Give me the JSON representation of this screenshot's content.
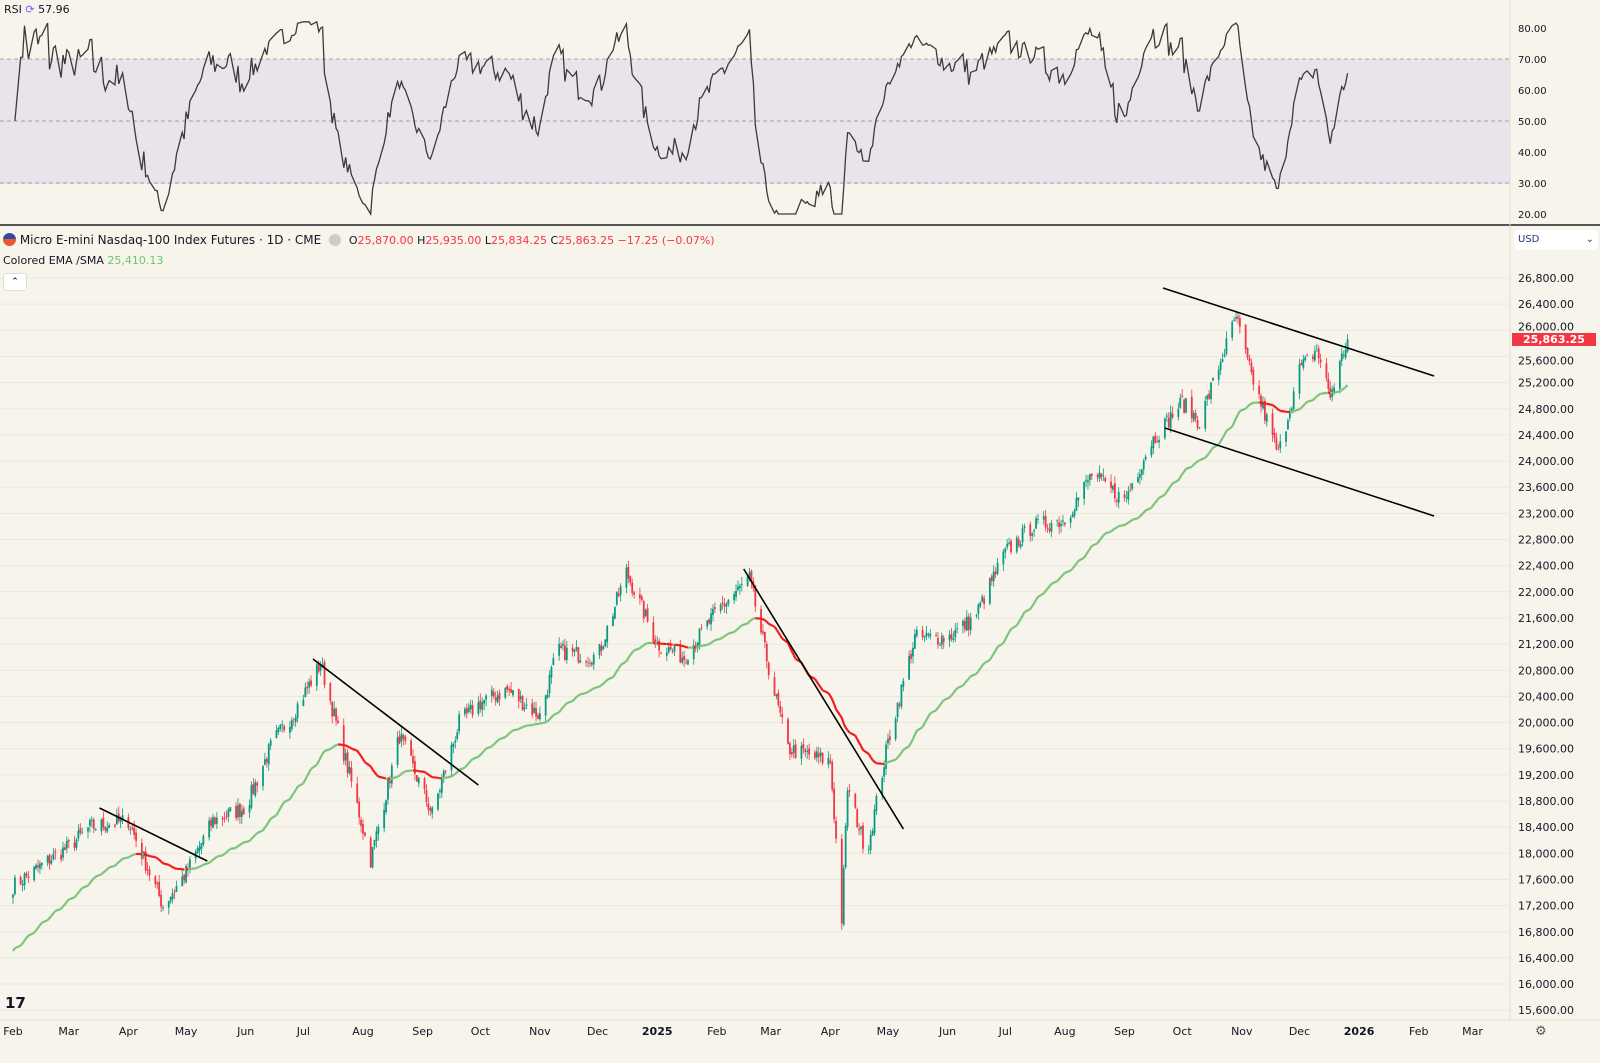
{
  "rsi_pane": {
    "label": "RSI",
    "value": "57.96",
    "ticks": [
      "80.00",
      "70.00",
      "60.00",
      "50.00",
      "40.00",
      "30.00",
      "20.00"
    ]
  },
  "header": {
    "symbol": "Micro E-mini Nasdaq-100 Index Futures · 1D · CME",
    "open_label": "O",
    "open": "25,870.00",
    "high_label": "H",
    "high": "25,935.00",
    "low_label": "L",
    "low": "25,834.25",
    "close_label": "C",
    "close": "25,863.25",
    "change": "−17.25 (−0.07%)",
    "indicator_name": "Colored EMA /SMA",
    "indicator_value": "25,410.13",
    "currency": "USD"
  },
  "colors": {
    "up": "#089981",
    "down": "#f23645",
    "ema_up": "#7cc47c",
    "ema_down": "#f21b1b",
    "rsi_line": "#3a3a3a",
    "rsi_band": "#e9e4ec",
    "background": "#f7f4ec"
  },
  "chart_data": {
    "type": "candlestick",
    "price_ticks": [
      "26,800.00",
      "26,400.00",
      "26,000.00",
      "25,600.00",
      "25,200.00",
      "24,800.00",
      "24,400.00",
      "24,000.00",
      "23,600.00",
      "23,200.00",
      "22,800.00",
      "22,400.00",
      "22,000.00",
      "21,600.00",
      "21,200.00",
      "20,800.00",
      "20,400.00",
      "20,000.00",
      "19,600.00",
      "19,200.00",
      "18,800.00",
      "18,400.00",
      "18,000.00",
      "17,600.00",
      "17,200.00",
      "16,800.00",
      "16,400.00",
      "16,000.00",
      "15,600.00"
    ],
    "ylim": [
      15500,
      27200
    ],
    "last_price": "25,863.25",
    "time_ticks": [
      "Feb",
      "Mar",
      "Apr",
      "May",
      "Jun",
      "Jul",
      "Aug",
      "Sep",
      "Oct",
      "Nov",
      "Dec",
      "2025",
      "Feb",
      "Mar",
      "Apr",
      "May",
      "Jun",
      "Jul",
      "Aug",
      "Sep",
      "Oct",
      "Nov",
      "Dec",
      "2026",
      "Feb",
      "Mar"
    ],
    "approx_closes": [
      [
        "2024-02-01",
        17500
      ],
      [
        "2024-02-20",
        17900
      ],
      [
        "2024-03-01",
        18100
      ],
      [
        "2024-03-12",
        18400
      ],
      [
        "2024-04-01",
        18500
      ],
      [
        "2024-04-19",
        17200
      ],
      [
        "2024-05-01",
        17700
      ],
      [
        "2024-05-15",
        18500
      ],
      [
        "2024-06-01",
        18700
      ],
      [
        "2024-06-15",
        19700
      ],
      [
        "2024-06-25",
        20100
      ],
      [
        "2024-07-10",
        20900
      ],
      [
        "2024-07-25",
        19200
      ],
      [
        "2024-08-05",
        17900
      ],
      [
        "2024-08-20",
        19800
      ],
      [
        "2024-09-06",
        18600
      ],
      [
        "2024-09-20",
        20000
      ],
      [
        "2024-10-01",
        20300
      ],
      [
        "2024-10-15",
        20500
      ],
      [
        "2024-11-01",
        20100
      ],
      [
        "2024-11-10",
        21100
      ],
      [
        "2024-12-01",
        21000
      ],
      [
        "2024-12-16",
        22300
      ],
      [
        "2025-01-01",
        21200
      ],
      [
        "2025-01-15",
        21000
      ],
      [
        "2025-02-01",
        21700
      ],
      [
        "2025-02-18",
        22200
      ],
      [
        "2025-03-01",
        20700
      ],
      [
        "2025-03-10",
        19600
      ],
      [
        "2025-04-01",
        19400
      ],
      [
        "2025-04-07",
        17000
      ],
      [
        "2025-04-10",
        19000
      ],
      [
        "2025-04-20",
        18000
      ],
      [
        "2025-05-01",
        19700
      ],
      [
        "2025-05-15",
        21300
      ],
      [
        "2025-06-01",
        21300
      ],
      [
        "2025-06-15",
        21600
      ],
      [
        "2025-07-01",
        22600
      ],
      [
        "2025-07-15",
        23000
      ],
      [
        "2025-08-01",
        23100
      ],
      [
        "2025-08-15",
        23800
      ],
      [
        "2025-09-01",
        23400
      ],
      [
        "2025-09-15",
        24300
      ],
      [
        "2025-10-01",
        24900
      ],
      [
        "2025-10-10",
        24600
      ],
      [
        "2025-10-29",
        26200
      ],
      [
        "2025-11-05",
        25400
      ],
      [
        "2025-11-20",
        24100
      ],
      [
        "2025-12-01",
        25400
      ],
      [
        "2025-12-10",
        25700
      ],
      [
        "2025-12-17",
        25000
      ],
      [
        "2025-12-26",
        25863.25
      ]
    ],
    "trendlines": [
      [
        [
          "2024-03-17",
          18693
        ],
        [
          "2024-05-12",
          17882
        ]
      ],
      [
        [
          "2024-07-06",
          20972
        ],
        [
          "2024-09-30",
          19045
        ]
      ],
      [
        [
          "2025-02-15",
          22349
        ],
        [
          "2025-05-09",
          18372
        ]
      ],
      [
        [
          "2025-09-21",
          26647
        ],
        [
          "2026-02-09",
          25301
        ]
      ],
      [
        [
          "2025-09-22",
          24506
        ],
        [
          "2026-02-09",
          23160
        ]
      ]
    ]
  }
}
